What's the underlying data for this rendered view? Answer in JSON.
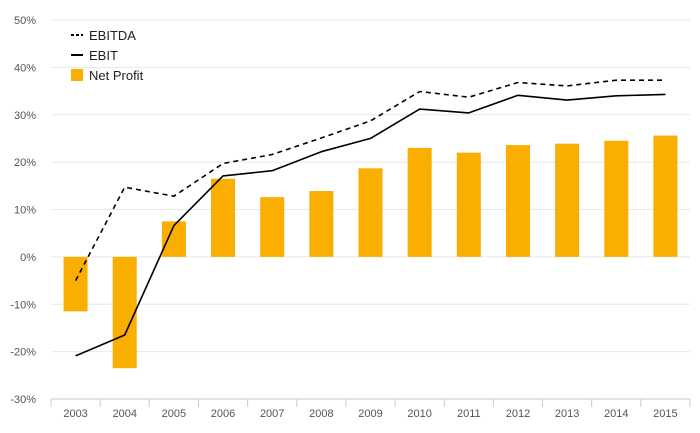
{
  "chart_data": {
    "type": "bar",
    "categories": [
      "2003",
      "2004",
      "2005",
      "2006",
      "2007",
      "2008",
      "2009",
      "2010",
      "2011",
      "2012",
      "2013",
      "2014",
      "2015"
    ],
    "ylim": [
      -30,
      50
    ],
    "yticks": [
      -30,
      -20,
      -10,
      0,
      10,
      20,
      30,
      40,
      50
    ],
    "ytick_labels": [
      "-30%",
      "-20%",
      "-10%",
      "0%",
      "10%",
      "20%",
      "30%",
      "40%",
      "50%"
    ],
    "grid": true,
    "legend_position": "top-left",
    "series": [
      {
        "name": "EBITDA",
        "kind": "line",
        "style": "dashed",
        "color": "#000000",
        "values": [
          -5,
          14.7,
          12.8,
          19.7,
          21.6,
          25.1,
          28.7,
          34.9,
          33.7,
          36.8,
          36.1,
          37.3,
          37.3
        ]
      },
      {
        "name": "EBIT",
        "kind": "line",
        "style": "solid",
        "color": "#000000",
        "values": [
          -20.9,
          -16.5,
          6.6,
          17.1,
          18.2,
          22.2,
          25.0,
          31.2,
          30.4,
          34.1,
          33.1,
          34.0,
          34.3
        ]
      },
      {
        "name": "Net Profit",
        "kind": "bar",
        "color": "#F9AE00",
        "values": [
          -11.5,
          -23.5,
          7.5,
          16.5,
          12.6,
          13.9,
          18.7,
          23.0,
          22.0,
          23.6,
          23.9,
          24.5,
          25.6
        ]
      }
    ],
    "title": "",
    "xlabel": "",
    "ylabel": ""
  }
}
